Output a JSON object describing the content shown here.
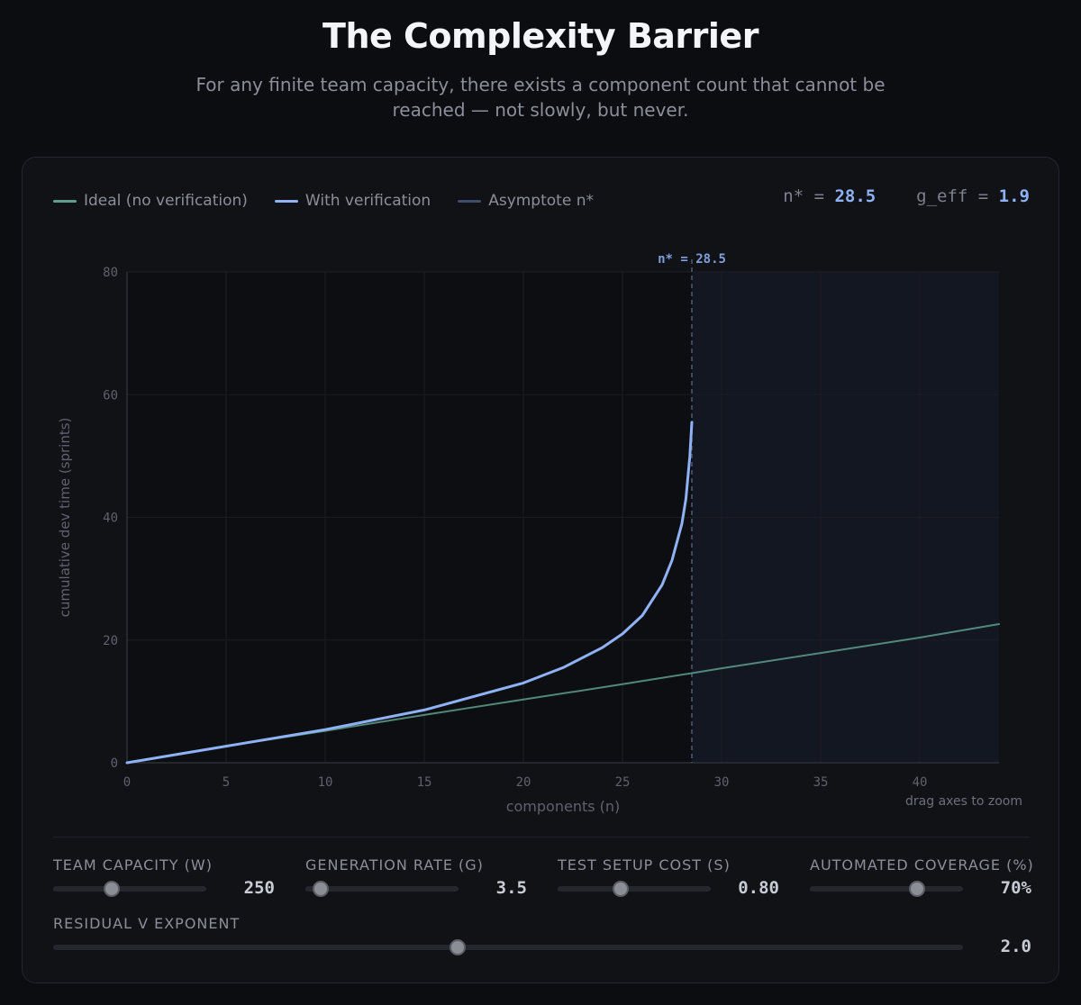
{
  "header": {
    "title": "The Complexity Barrier",
    "subtitle": "For any finite team capacity, there exists a component count that cannot be reached — not slowly, but never."
  },
  "legend": [
    {
      "label": "Ideal (no verification)",
      "color": "#5f9e8a"
    },
    {
      "label": "With verification",
      "color": "#8fb2f5"
    },
    {
      "label": "Asymptote n*",
      "color": "#3e4c6e"
    }
  ],
  "readout": {
    "nstar_label": "n* =",
    "nstar_value": "28.5",
    "geff_label": "g_eff =",
    "geff_value": "1.9"
  },
  "hint": "drag axes to zoom",
  "chart_data": {
    "type": "line",
    "xlabel": "components (n)",
    "ylabel": "cumulative dev time (sprints)",
    "xlim": [
      0,
      44
    ],
    "ylim": [
      0,
      80
    ],
    "x_ticks": [
      0,
      5,
      10,
      15,
      20,
      25,
      30,
      35,
      40
    ],
    "y_ticks": [
      0,
      20,
      40,
      60,
      80
    ],
    "grid": true,
    "asymptote": {
      "x": 28.5,
      "label": "n* = 28.5"
    },
    "series": [
      {
        "name": "Ideal (no verification)",
        "color": "#5f9e8a",
        "x": [
          0,
          5,
          10,
          15,
          20,
          25,
          28.5,
          30,
          35,
          40,
          44
        ],
        "y": [
          0,
          2.7,
          5.2,
          7.8,
          10.3,
          12.8,
          14.6,
          15.4,
          17.9,
          20.4,
          22.6
        ]
      },
      {
        "name": "With verification",
        "color": "#8fb2f5",
        "x": [
          0,
          5,
          10,
          15,
          20,
          22,
          24,
          25,
          26,
          27,
          27.5,
          28,
          28.2,
          28.4,
          28.5
        ],
        "y": [
          0,
          2.7,
          5.4,
          8.6,
          13.0,
          15.5,
          18.8,
          21.0,
          24.0,
          29.0,
          33.0,
          39.0,
          43.0,
          50.0,
          55.5
        ]
      }
    ]
  },
  "controls": [
    {
      "label": "TEAM CAPACITY (W)",
      "value": "250",
      "fraction": 0.38
    },
    {
      "label": "GENERATION RATE (G)",
      "value": "3.5",
      "fraction": 0.1
    },
    {
      "label": "TEST SETUP COST (S)",
      "value": "0.80",
      "fraction": 0.41
    },
    {
      "label": "AUTOMATED COVERAGE (%)",
      "value": "70%",
      "fraction": 0.7
    },
    {
      "label": "RESIDUAL V EXPONENT",
      "value": "2.0",
      "fraction": 0.445
    }
  ]
}
